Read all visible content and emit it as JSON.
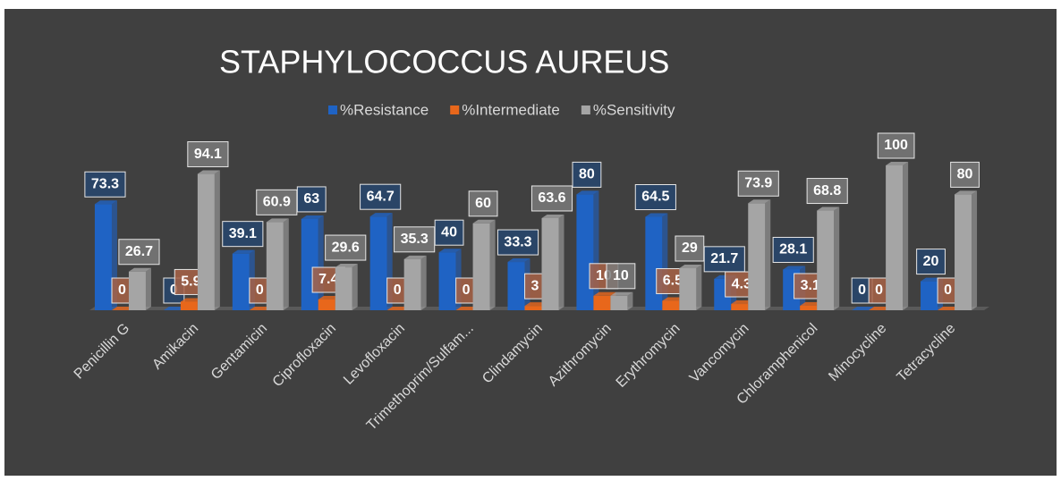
{
  "chart_data": {
    "type": "bar",
    "title": "STAPHYLOCOCCUS AUREUS",
    "categories": [
      "Penicillin G",
      "Amikacin",
      "Gentamicin",
      "Ciprofloxacin",
      "Levofloxacin",
      "Trimethoprim/Sulfam...",
      "Clindamycin",
      "Azithromycin",
      "Erythromycin",
      "Vancomycin",
      "Chloramphenicol",
      "Minocycline",
      "Tetracycline"
    ],
    "series": [
      {
        "name": "%Resistance",
        "color": "#1f63c4",
        "values": [
          73.3,
          0,
          39.1,
          63,
          64.7,
          40,
          33.3,
          80,
          64.5,
          21.7,
          28.1,
          0,
          20
        ]
      },
      {
        "name": "%Intermediate",
        "color": "#e8671b",
        "values": [
          0,
          5.9,
          0,
          7.4,
          0,
          0,
          3,
          10,
          6.5,
          4.3,
          3.1,
          0,
          0
        ]
      },
      {
        "name": "%Sensitivity",
        "color": "#a5a5a5",
        "values": [
          26.7,
          94.1,
          60.9,
          29.6,
          35.3,
          60,
          63.6,
          10,
          29,
          73.9,
          68.8,
          100,
          80
        ]
      }
    ],
    "legend": "top"
  }
}
